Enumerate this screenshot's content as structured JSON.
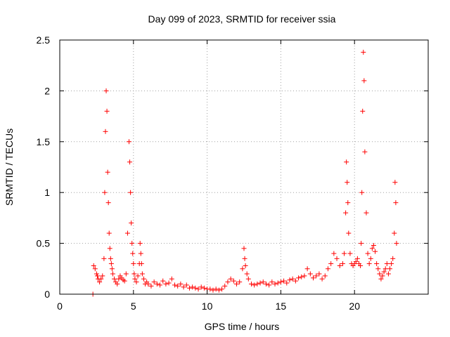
{
  "chart_data": {
    "type": "scatter",
    "title": "Day 099 of 2023, SRMTID for receiver ssia",
    "xlabel": "GPS time / hours",
    "ylabel": "SRMTID / TECUs",
    "xlim": [
      0,
      25
    ],
    "ylim": [
      0,
      2.5
    ],
    "xticks": [
      0,
      5,
      10,
      15,
      20
    ],
    "xtick_labels": [
      "0",
      "5",
      "10",
      "15",
      "20"
    ],
    "yticks": [
      0,
      0.5,
      1,
      1.5,
      2,
      2.5
    ],
    "ytick_labels": [
      "0",
      "0.5",
      "1",
      "1.5",
      "2",
      "2.5"
    ],
    "grid": true,
    "marker": "+",
    "marker_color": "#ff0000",
    "series": [
      {
        "name": "SRMTID",
        "x": [
          2.25,
          2.3,
          2.4,
          2.5,
          2.55,
          2.6,
          2.7,
          2.8,
          2.9,
          3.0,
          3.05,
          3.1,
          3.15,
          3.2,
          3.25,
          3.3,
          3.35,
          3.4,
          3.45,
          3.5,
          3.55,
          3.6,
          3.7,
          3.8,
          3.9,
          4.0,
          4.1,
          4.2,
          4.3,
          4.4,
          4.5,
          4.6,
          4.7,
          4.75,
          4.8,
          4.85,
          4.9,
          4.95,
          5.0,
          5.05,
          5.1,
          5.2,
          5.3,
          5.4,
          5.45,
          5.5,
          5.55,
          5.6,
          5.7,
          5.8,
          5.9,
          6.0,
          6.2,
          6.4,
          6.6,
          6.8,
          7.0,
          7.2,
          7.4,
          7.6,
          7.8,
          8.0,
          8.2,
          8.4,
          8.6,
          8.8,
          9.0,
          9.2,
          9.4,
          9.6,
          9.8,
          10.0,
          10.2,
          10.4,
          10.6,
          10.8,
          11.0,
          11.2,
          11.4,
          11.6,
          11.8,
          12.0,
          12.2,
          12.4,
          12.5,
          12.55,
          12.6,
          12.7,
          12.8,
          13.0,
          13.2,
          13.4,
          13.6,
          13.8,
          14.0,
          14.2,
          14.4,
          14.6,
          14.8,
          15.0,
          15.2,
          15.4,
          15.6,
          15.8,
          16.0,
          16.2,
          16.4,
          16.6,
          16.8,
          17.0,
          17.2,
          17.4,
          17.6,
          17.8,
          18.0,
          18.2,
          18.4,
          18.6,
          18.8,
          19.0,
          19.2,
          19.3,
          19.4,
          19.45,
          19.5,
          19.55,
          19.6,
          19.7,
          19.8,
          19.9,
          20.0,
          20.1,
          20.2,
          20.3,
          20.4,
          20.45,
          20.5,
          20.55,
          20.6,
          20.65,
          20.7,
          20.8,
          20.9,
          21.0,
          21.1,
          21.2,
          21.3,
          21.4,
          21.5,
          21.6,
          21.7,
          21.8,
          21.9,
          22.0,
          22.1,
          22.2,
          22.3,
          22.4,
          22.5,
          22.6,
          22.7,
          22.75,
          22.8,
          22.85
        ],
        "y": [
          0.0,
          0.28,
          0.25,
          0.2,
          0.18,
          0.15,
          0.12,
          0.15,
          0.18,
          0.35,
          1.0,
          1.6,
          2.0,
          1.8,
          1.2,
          0.9,
          0.6,
          0.45,
          0.35,
          0.3,
          0.25,
          0.2,
          0.15,
          0.12,
          0.1,
          0.15,
          0.18,
          0.16,
          0.14,
          0.13,
          0.2,
          0.6,
          1.5,
          1.3,
          1.0,
          0.7,
          0.5,
          0.4,
          0.3,
          0.2,
          0.15,
          0.12,
          0.18,
          0.3,
          0.5,
          0.4,
          0.3,
          0.2,
          0.15,
          0.1,
          0.12,
          0.1,
          0.08,
          0.12,
          0.1,
          0.09,
          0.13,
          0.1,
          0.11,
          0.15,
          0.09,
          0.08,
          0.1,
          0.07,
          0.09,
          0.06,
          0.07,
          0.06,
          0.05,
          0.07,
          0.06,
          0.05,
          0.05,
          0.04,
          0.05,
          0.04,
          0.05,
          0.08,
          0.12,
          0.15,
          0.13,
          0.1,
          0.12,
          0.25,
          0.45,
          0.35,
          0.28,
          0.2,
          0.15,
          0.1,
          0.09,
          0.1,
          0.11,
          0.12,
          0.1,
          0.09,
          0.12,
          0.1,
          0.11,
          0.12,
          0.13,
          0.11,
          0.14,
          0.15,
          0.13,
          0.16,
          0.17,
          0.18,
          0.25,
          0.2,
          0.16,
          0.18,
          0.2,
          0.15,
          0.18,
          0.25,
          0.3,
          0.4,
          0.35,
          0.28,
          0.3,
          0.4,
          0.8,
          1.3,
          1.1,
          0.9,
          0.6,
          0.4,
          0.3,
          0.28,
          0.3,
          0.32,
          0.35,
          0.3,
          0.28,
          0.5,
          1.0,
          1.8,
          2.38,
          2.1,
          1.4,
          0.8,
          0.4,
          0.3,
          0.35,
          0.45,
          0.48,
          0.42,
          0.3,
          0.25,
          0.2,
          0.15,
          0.18,
          0.22,
          0.25,
          0.3,
          0.2,
          0.25,
          0.3,
          0.35,
          0.6,
          1.1,
          0.9,
          0.5
        ]
      }
    ]
  }
}
